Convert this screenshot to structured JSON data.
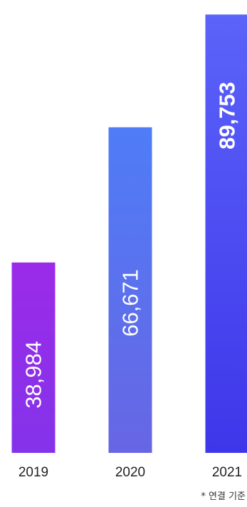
{
  "chart_data": {
    "type": "bar",
    "categories": [
      "2019",
      "2020",
      "2021"
    ],
    "values": [
      38984,
      66671,
      89753
    ],
    "value_labels": [
      "38,984",
      "66,671",
      "89,753"
    ],
    "ylim": [
      0,
      92000
    ],
    "grid": false,
    "bar_colors": [
      {
        "top": "#9b2be8",
        "bottom": "#8433ea"
      },
      {
        "top": "#4f7cf7",
        "bottom": "#6766e4"
      },
      {
        "top": "#5b63f9",
        "bottom": "#3e36ea"
      }
    ],
    "highlight_index": 2
  },
  "footnote": "* 연결 기준"
}
